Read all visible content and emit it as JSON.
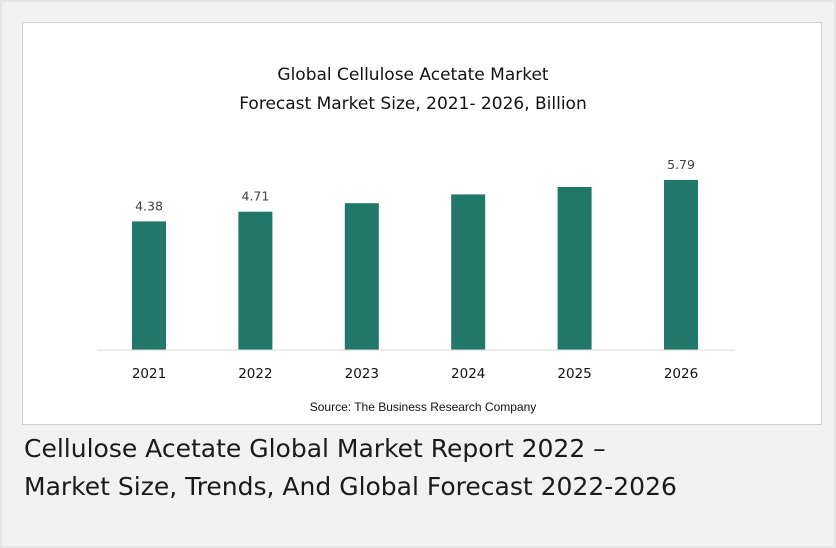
{
  "chart_data": {
    "type": "bar",
    "title": [
      "Global Cellulose Acetate Market",
      "Forecast Market Size, 2021- 2026, Billion"
    ],
    "categories": [
      "2021",
      "2022",
      "2023",
      "2024",
      "2025",
      "2026"
    ],
    "values": [
      4.38,
      4.71,
      5.0,
      5.3,
      5.55,
      5.79
    ],
    "data_labels": [
      "4.38",
      "4.71",
      "",
      "",
      "",
      "5.79"
    ],
    "ylim": [
      0,
      5.79
    ],
    "xlabel": "",
    "ylabel": "",
    "grid": false,
    "legend": "none",
    "bar_color": "#217868",
    "source": "Source: The Business Research Company"
  },
  "caption": {
    "line1": "Cellulose Acetate Global Market Report 2022 –",
    "line2": "Market Size, Trends, And Global Forecast 2022-2026"
  }
}
